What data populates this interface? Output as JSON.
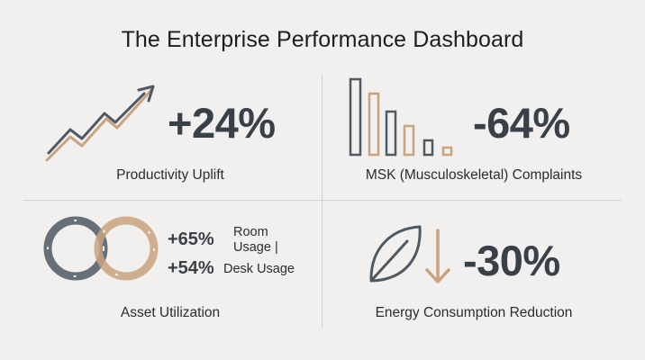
{
  "title": "The Enterprise Performance Dashboard",
  "colors": {
    "slate": "#4f5963",
    "gold": "#c9a27f",
    "text": "#2a2a2c",
    "background": "#f1f0ee"
  },
  "panels": {
    "productivity": {
      "value": "+24%",
      "caption": "Productivity Uplift",
      "icon": "trend-up-arrow-icon"
    },
    "msk": {
      "value": "-64%",
      "caption": "MSK (Musculoskeletal) Complaints",
      "icon": "declining-bars-icon"
    },
    "assets": {
      "caption": "Asset Utilization",
      "icon": "overlapping-rings-icon",
      "room_value": "+65%",
      "room_label": "Room Usage |",
      "desk_value": "+54%",
      "desk_label": "Desk Usage"
    },
    "energy": {
      "value": "-30%",
      "caption": "Energy Consumption Reduction",
      "icon": "leaf-down-arrow-icon"
    }
  }
}
